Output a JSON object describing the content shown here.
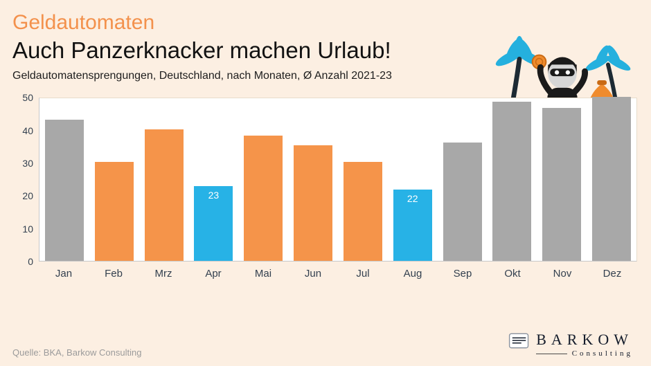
{
  "header": {
    "title_line1": "Geldautomaten",
    "title_line2": "Auch Panzerknacker machen Urlaub!",
    "subtitle": "Geldautomatensprengungen, Deutschland, nach Monaten, Ø Anzahl 2021-23"
  },
  "footer": {
    "source": "Quelle: BKA, Barkow Consulting",
    "logo_name": "BARKOW",
    "logo_sub": "Consulting"
  },
  "colors": {
    "background": "#fcefe2",
    "accent_orange": "#f3914c",
    "bar_gray": "#a8a8a8",
    "bar_orange": "#f5944a",
    "bar_blue": "#27b2e6",
    "axis_text": "#33404f",
    "plot_bg": "#ffffff"
  },
  "chart_data": {
    "type": "bar",
    "title": "Auch Panzerknacker machen Urlaub!",
    "subtitle": "Geldautomatensprengungen, Deutschland, nach Monaten, Ø Anzahl 2021-23",
    "categories": [
      "Jan",
      "Feb",
      "Mrz",
      "Apr",
      "Mai",
      "Jun",
      "Jul",
      "Aug",
      "Sep",
      "Okt",
      "Nov",
      "Dez"
    ],
    "values": [
      43.5,
      30.5,
      40.5,
      23,
      38.5,
      35.5,
      30.5,
      22,
      36.5,
      49,
      47,
      50.5
    ],
    "bar_colors": [
      "gray",
      "orange",
      "orange",
      "blue",
      "orange",
      "orange",
      "orange",
      "blue",
      "gray",
      "gray",
      "gray",
      "gray"
    ],
    "data_labels": [
      "",
      "",
      "",
      "23",
      "",
      "",
      "",
      "22",
      "",
      "",
      "",
      ""
    ],
    "xlabel": "",
    "ylabel": "",
    "ylim": [
      0,
      50
    ],
    "yticks": [
      0,
      10,
      20,
      30,
      40,
      50
    ],
    "grid": false,
    "legend": false
  }
}
